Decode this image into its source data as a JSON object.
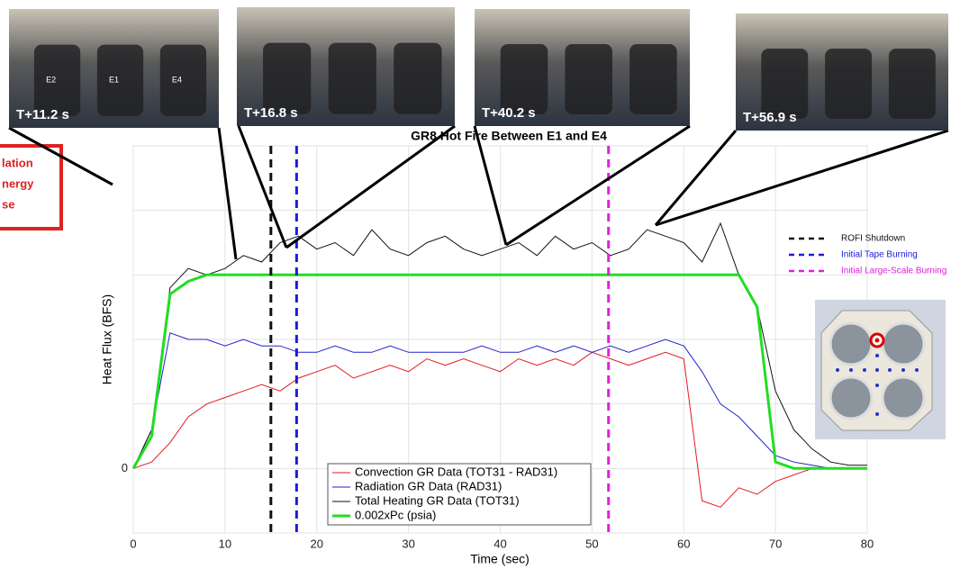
{
  "chart_data": {
    "type": "line",
    "title": "GR8 Hot Fire Between E1 and E4",
    "xlabel": "Time (sec)",
    "ylabel": "Heat Flux (BFS)",
    "x": [
      0,
      2,
      4,
      6,
      8,
      10,
      12,
      14,
      16,
      18,
      20,
      22,
      24,
      26,
      28,
      30,
      32,
      34,
      36,
      38,
      40,
      42,
      44,
      46,
      48,
      50,
      52,
      54,
      56,
      58,
      60,
      62,
      64,
      66,
      68,
      70,
      72,
      74,
      76,
      78,
      80
    ],
    "series": [
      {
        "name": "Convection GR Data (TOT31 - RAD31)",
        "color": "#e41a1c",
        "width": 1,
        "values": [
          0,
          0.1,
          0.4,
          0.8,
          1.0,
          1.1,
          1.2,
          1.3,
          1.2,
          1.4,
          1.5,
          1.6,
          1.4,
          1.5,
          1.6,
          1.5,
          1.7,
          1.6,
          1.7,
          1.6,
          1.5,
          1.7,
          1.6,
          1.7,
          1.6,
          1.8,
          1.7,
          1.6,
          1.7,
          1.8,
          1.7,
          -0.5,
          -0.6,
          -0.3,
          -0.4,
          -0.2,
          -0.1,
          0,
          0,
          0,
          0
        ]
      },
      {
        "name": "Radiation GR Data (RAD31)",
        "color": "#2222cc",
        "width": 1,
        "values": [
          0,
          0.6,
          2.1,
          2.0,
          2.0,
          1.9,
          2.0,
          1.9,
          1.9,
          1.8,
          1.8,
          1.9,
          1.8,
          1.8,
          1.9,
          1.8,
          1.8,
          1.8,
          1.8,
          1.9,
          1.8,
          1.8,
          1.9,
          1.8,
          1.9,
          1.8,
          1.9,
          1.8,
          1.9,
          2.0,
          1.9,
          1.5,
          1.0,
          0.8,
          0.5,
          0.2,
          0.1,
          0.05,
          0,
          0,
          0
        ]
      },
      {
        "name": "Total Heating GR Data (TOT31)",
        "color": "#111111",
        "width": 1,
        "values": [
          0,
          0.6,
          2.8,
          3.1,
          3.0,
          3.1,
          3.3,
          3.2,
          3.5,
          3.6,
          3.4,
          3.5,
          3.3,
          3.7,
          3.4,
          3.3,
          3.5,
          3.6,
          3.4,
          3.3,
          3.4,
          3.5,
          3.3,
          3.6,
          3.4,
          3.5,
          3.3,
          3.4,
          3.7,
          3.6,
          3.5,
          3.2,
          3.8,
          3.0,
          2.5,
          1.2,
          0.6,
          0.3,
          0.1,
          0.05,
          0.05
        ]
      },
      {
        "name": "0.002xPc (psia)",
        "color": "#22dd22",
        "width": 3,
        "values": [
          0,
          0.5,
          2.7,
          2.9,
          3.0,
          3.0,
          3.0,
          3.0,
          3.0,
          3.0,
          3.0,
          3.0,
          3.0,
          3.0,
          3.0,
          3.0,
          3.0,
          3.0,
          3.0,
          3.0,
          3.0,
          3.0,
          3.0,
          3.0,
          3.0,
          3.0,
          3.0,
          3.0,
          3.0,
          3.0,
          3.0,
          3.0,
          3.0,
          3.0,
          2.5,
          0.1,
          0,
          0,
          0,
          0,
          0
        ]
      }
    ],
    "vlines": [
      {
        "name": "ROFI Shutdown",
        "x": 15,
        "color": "#111111"
      },
      {
        "name": "Initial Tape Burning",
        "x": 17.8,
        "color": "#1a1adb"
      },
      {
        "name": "Initial Large-Scale Burning",
        "x": 51.8,
        "color": "#e020e0"
      }
    ],
    "xlim": [
      0,
      80
    ],
    "xticks": [
      0,
      10,
      20,
      30,
      40,
      50,
      60,
      70,
      80
    ],
    "ylim": [
      -1,
      5
    ],
    "yticks": [
      {
        "value": -1,
        "label": null
      },
      0,
      {
        "value": 1,
        "label": null
      },
      {
        "value": 2,
        "label": null
      },
      {
        "value": 3,
        "label": null
      },
      {
        "value": 4,
        "label": null
      },
      {
        "value": 5,
        "label": null
      }
    ],
    "grid": true,
    "photos": [
      {
        "label": "T+11.2 s",
        "engines": [
          "E2",
          "E1",
          "E4"
        ]
      },
      {
        "label": "T+16.8 s"
      },
      {
        "label": "T+40.2 s"
      },
      {
        "label": "T+56.9 s"
      }
    ],
    "annotation_box": [
      "lation",
      "nergy",
      "se"
    ]
  }
}
